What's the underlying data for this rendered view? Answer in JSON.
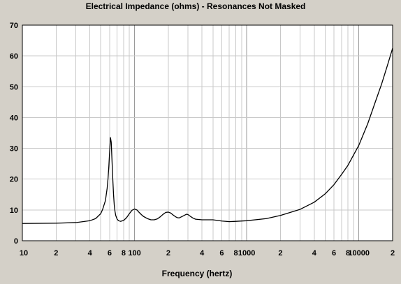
{
  "colors": {
    "background": "#d4d0c8",
    "plot_background": "#ffffff",
    "grid": "#c8c8c8",
    "curve": "#000000"
  },
  "chart_data": {
    "type": "line",
    "title": "Electrical Impedance (ohms) - Resonances Not Masked",
    "xlabel": "Frequency (hertz)",
    "ylabel": "",
    "xscale": "log",
    "xlim": [
      10,
      20000
    ],
    "ylim": [
      0,
      70
    ],
    "grid": true,
    "legend": "none",
    "x_tick_labels": [
      {
        "value": 10,
        "label": "10"
      },
      {
        "value": 20,
        "label": "2"
      },
      {
        "value": 40,
        "label": "4"
      },
      {
        "value": 60,
        "label": "6"
      },
      {
        "value": 80,
        "label": "8"
      },
      {
        "value": 100,
        "label": "100"
      },
      {
        "value": 200,
        "label": "2"
      },
      {
        "value": 400,
        "label": "4"
      },
      {
        "value": 600,
        "label": "6"
      },
      {
        "value": 800,
        "label": "8"
      },
      {
        "value": 1000,
        "label": "1000"
      },
      {
        "value": 2000,
        "label": "2"
      },
      {
        "value": 4000,
        "label": "4"
      },
      {
        "value": 6000,
        "label": "6"
      },
      {
        "value": 8000,
        "label": "8"
      },
      {
        "value": 10000,
        "label": "10000"
      },
      {
        "value": 20000,
        "label": "2"
      }
    ],
    "y_ticks": [
      0,
      10,
      20,
      30,
      40,
      50,
      60,
      70
    ],
    "series": [
      {
        "x": [
          10,
          20,
          30,
          40,
          45,
          50,
          52,
          55,
          57,
          58,
          59,
          60,
          61,
          62,
          63,
          64,
          65,
          66,
          67,
          68,
          70,
          72,
          75,
          80,
          85,
          90,
          95,
          100,
          105,
          110,
          115,
          120,
          130,
          140,
          150,
          160,
          170,
          180,
          190,
          200,
          210,
          220,
          230,
          240,
          250,
          270,
          290,
          300,
          310,
          330,
          350,
          400,
          500,
          600,
          700,
          800,
          1000,
          1500,
          2000,
          3000,
          4000,
          5000,
          6000,
          7000,
          8000,
          10000,
          12000,
          14000,
          16000,
          18000,
          20000
        ],
        "y": [
          5.6,
          5.7,
          5.9,
          6.5,
          7.2,
          8.8,
          10.2,
          13,
          17,
          20,
          24,
          29,
          33.5,
          32,
          26,
          20,
          15,
          11.5,
          9.5,
          8.2,
          7,
          6.5,
          6.3,
          6.6,
          7.5,
          8.8,
          9.9,
          10.3,
          10,
          9.2,
          8.5,
          7.9,
          7.2,
          6.8,
          6.8,
          7.1,
          7.8,
          8.6,
          9.2,
          9.3,
          9,
          8.4,
          7.9,
          7.5,
          7.4,
          8,
          8.6,
          8.5,
          8.1,
          7.4,
          7,
          6.8,
          6.8,
          6.4,
          6.2,
          6.3,
          6.5,
          7.2,
          8.2,
          10.2,
          12.5,
          15.2,
          18.2,
          21.5,
          24.5,
          31,
          38,
          45,
          51,
          57,
          62.5
        ]
      }
    ]
  }
}
